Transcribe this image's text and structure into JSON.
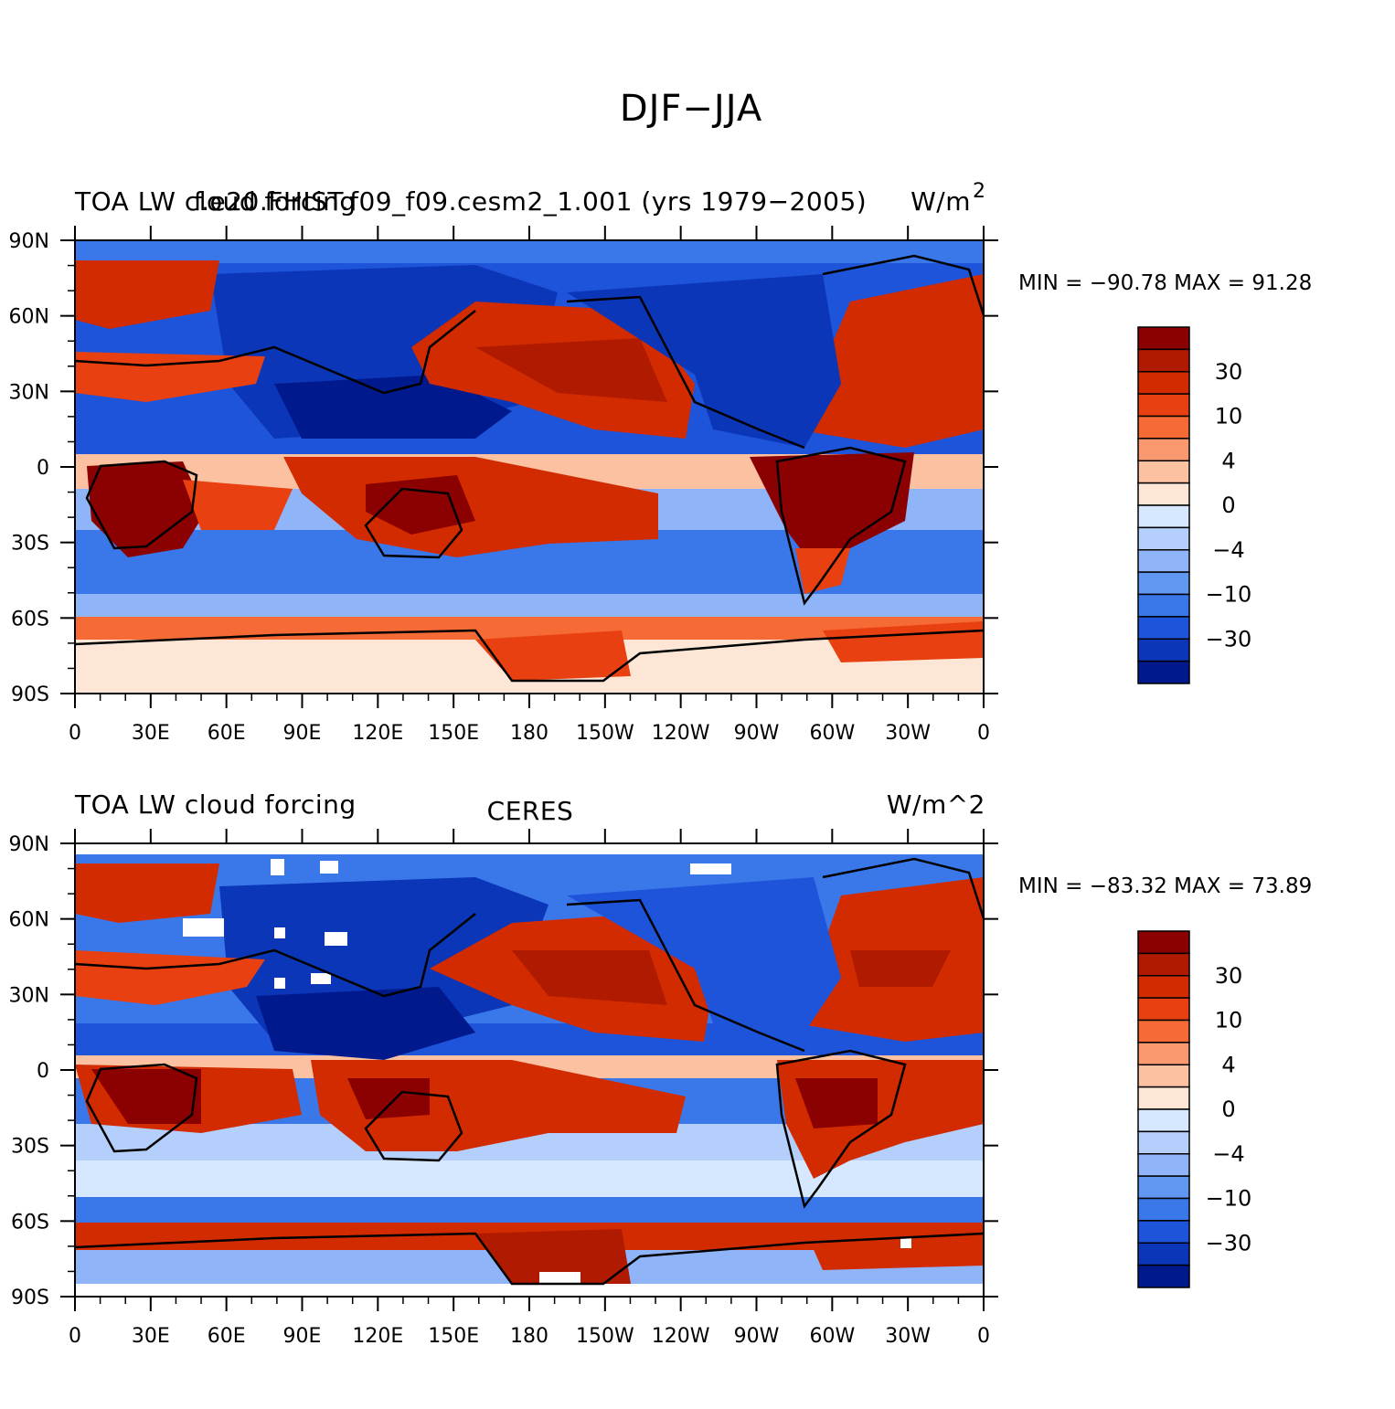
{
  "title": "DJF−JJA",
  "colorbar": {
    "levels": [
      "30",
      "10",
      "4",
      "0",
      "−4",
      "−10",
      "−30"
    ],
    "colors": [
      "#8b0000",
      "#b01a00",
      "#d22b00",
      "#e84010",
      "#f56a35",
      "#fa9870",
      "#fbc1a0",
      "#fde6d6",
      "#d6e8ff",
      "#b5cffc",
      "#8fb4f8",
      "#6197f0",
      "#3a78ea",
      "#1e54da",
      "#0b36b8",
      "#001a8e"
    ]
  },
  "axes": {
    "lat_labels": [
      "90N",
      "60N",
      "30N",
      "0",
      "30S",
      "60S",
      "90S"
    ],
    "lon_labels": [
      "0",
      "30E",
      "60E",
      "90E",
      "120E",
      "150E",
      "180",
      "150W",
      "120W",
      "90W",
      "60W",
      "30W",
      "0"
    ]
  },
  "panels": [
    {
      "left_title": "TOA LW cloud forcing",
      "center_title": "f.e20.FHIST.f09_f09.cesm2_1.001 (yrs 1979−2005)",
      "right_title": "W/m",
      "right_sup": "2",
      "stats_text": "MIN = −90.78 MAX =  91.28",
      "min": -90.78,
      "max": 91.28
    },
    {
      "left_title": "TOA LW cloud forcing",
      "center_title": "CERES",
      "right_title": "W/m^2",
      "stats_text": "MIN = −83.32 MAX =  73.89",
      "min": -83.32,
      "max": 73.89
    }
  ]
}
